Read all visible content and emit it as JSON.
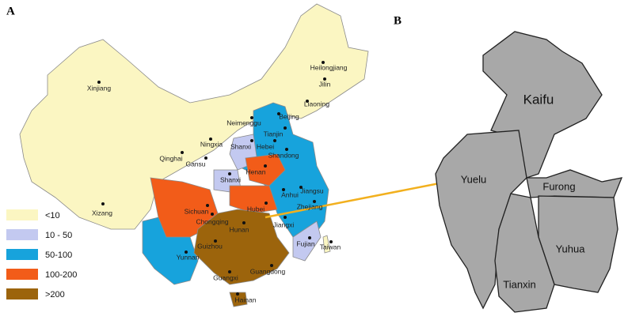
{
  "panel_a": {
    "label": "A",
    "legend": [
      {
        "label": "<10",
        "color": "#fbf6c2"
      },
      {
        "label": "10 - 50",
        "color": "#c3c9f0"
      },
      {
        "label": "50-100",
        "color": "#17a3dc"
      },
      {
        "label": "100-200",
        "color": "#f25c19"
      },
      {
        "label": ">200",
        "color": "#9c640c"
      }
    ],
    "provinces": [
      "Xinjiang",
      "Heilongjiang",
      "Jilin",
      "Liaoning",
      "Neimenggu",
      "Beijing",
      "Tianjin",
      "Ningxia",
      "Shanxi",
      "Hebei",
      "Shandong",
      "Qinghai",
      "Gansu",
      "Henan",
      "Shanxi",
      "Anhui",
      "Jiangsu",
      "Hubei",
      "Zhejiang",
      "Sichuan",
      "Chongqing",
      "Hunan",
      "Jiangxi",
      "Xizang",
      "Fujian",
      "Taiwan",
      "Guizhou",
      "Yunnan",
      "Guangdong",
      "Guangxi",
      "Hainan"
    ]
  },
  "panel_b": {
    "label": "B",
    "districts": [
      "Kaifu",
      "Yuelu",
      "Furong",
      "Yuhua",
      "Tianxin"
    ]
  }
}
